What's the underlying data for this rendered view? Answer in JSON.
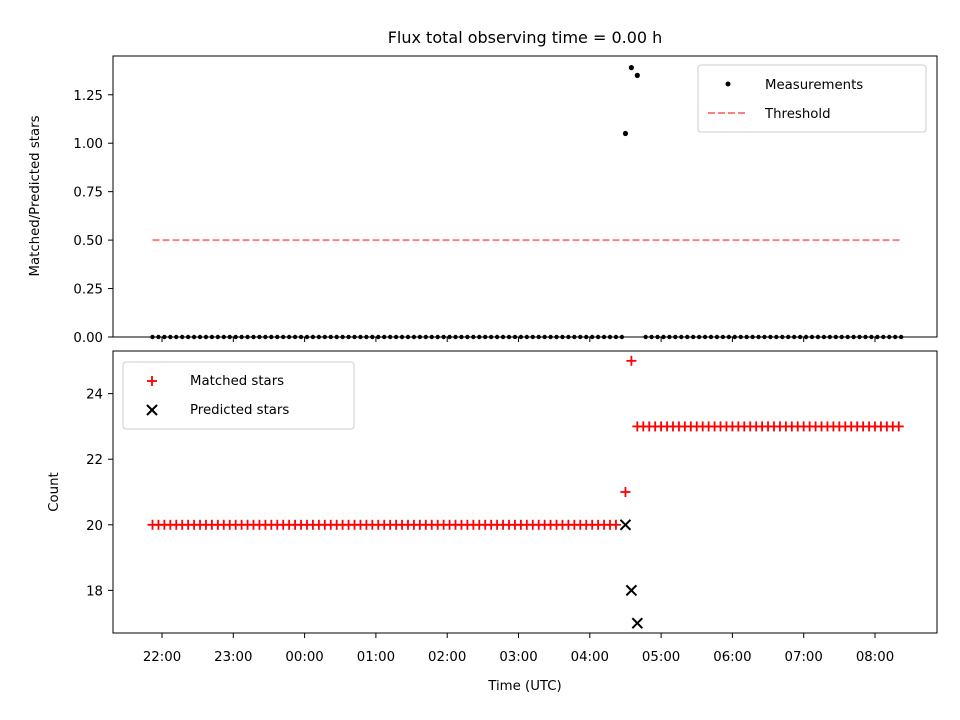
{
  "chart_data": [
    {
      "type": "scatter",
      "title": "Flux total observing time = 0.00 h",
      "xlabel": "",
      "ylabel": "Matched/Predicted stars",
      "ylim": [
        0,
        1.45
      ],
      "yticks": [
        "0.00",
        "0.25",
        "0.50",
        "0.75",
        "1.00",
        "1.25"
      ],
      "legend": {
        "placement": "upper-right",
        "entries": [
          "Measurements",
          "Threshold"
        ]
      },
      "series": [
        {
          "name": "Measurements",
          "color": "#000000",
          "marker": "dot",
          "baseline": {
            "value": 0.0,
            "start": "21:52",
            "end": "08:23",
            "step_minutes": 5,
            "gap": [
              "04:30",
              "04:45"
            ]
          },
          "points": [
            {
              "x": "04:30",
              "y": 1.05
            },
            {
              "x": "04:35",
              "y": 1.39
            },
            {
              "x": "04:40",
              "y": 1.35
            }
          ]
        },
        {
          "name": "Threshold",
          "color": "#ff7f7f",
          "style": "dashed",
          "x": [
            "21:52",
            "08:23"
          ],
          "y": [
            0.5,
            0.5
          ]
        }
      ]
    },
    {
      "type": "scatter",
      "title": "",
      "xlabel": "Time (UTC)",
      "ylabel": "Count",
      "ylim": [
        16.7,
        25.3
      ],
      "yticks": [
        "18",
        "20",
        "22",
        "24"
      ],
      "xticks": [
        "22:00",
        "23:00",
        "00:00",
        "01:00",
        "02:00",
        "03:00",
        "04:00",
        "05:00",
        "06:00",
        "07:00",
        "08:00"
      ],
      "legend": {
        "placement": "upper-left",
        "entries": [
          "Matched stars",
          "Predicted stars"
        ]
      },
      "series": [
        {
          "name": "Matched stars",
          "color": "#ff0000",
          "marker": "plus",
          "runs": [
            {
              "start": "21:52",
              "end": "04:25",
              "step_minutes": 5,
              "y": 20
            },
            {
              "start": "04:45",
              "end": "08:23",
              "step_minutes": 5,
              "y": 23
            }
          ],
          "points": [
            {
              "x": "04:30",
              "y": 21
            },
            {
              "x": "04:35",
              "y": 25
            },
            {
              "x": "04:40",
              "y": 23
            }
          ]
        },
        {
          "name": "Predicted stars",
          "color": "#000000",
          "marker": "x",
          "points": [
            {
              "x": "04:30",
              "y": 20
            },
            {
              "x": "04:35",
              "y": 18
            },
            {
              "x": "04:40",
              "y": 17
            }
          ]
        }
      ]
    }
  ]
}
